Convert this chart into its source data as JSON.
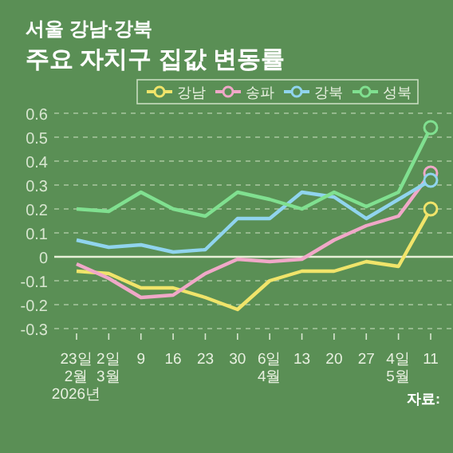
{
  "chart_data": {
    "type": "line",
    "subtitle": "서울 강남·강북",
    "title": "주요 자치구 집값 변동률",
    "categories": [
      "23일\n2월\n2026년",
      "2일\n3월",
      "9",
      "16",
      "23",
      "30",
      "6일\n4월",
      "13",
      "20",
      "27",
      "4일\n5월",
      "11"
    ],
    "series": [
      {
        "name": "강남",
        "color": "#f0e46a",
        "values": [
          -0.06,
          -0.07,
          -0.13,
          -0.13,
          -0.17,
          -0.22,
          -0.1,
          -0.06,
          -0.06,
          -0.02,
          -0.04,
          0.2
        ]
      },
      {
        "name": "송파",
        "color": "#f0a8c8",
        "values": [
          -0.03,
          -0.09,
          -0.17,
          -0.16,
          -0.07,
          -0.01,
          -0.02,
          -0.01,
          0.07,
          0.13,
          0.17,
          0.35
        ]
      },
      {
        "name": "강북",
        "color": "#90d4ee",
        "values": [
          0.07,
          0.04,
          0.05,
          0.02,
          0.03,
          0.16,
          0.16,
          0.27,
          0.25,
          0.16,
          0.24,
          0.32
        ]
      },
      {
        "name": "성북",
        "color": "#80e090",
        "values": [
          0.2,
          0.19,
          0.27,
          0.2,
          0.17,
          0.27,
          0.24,
          0.2,
          0.27,
          0.21,
          0.27,
          0.54
        ]
      }
    ],
    "ylim": [
      -0.3,
      0.6
    ],
    "yticks": [
      -0.3,
      -0.2,
      -0.1,
      0,
      0.1,
      0.2,
      0.3,
      0.4,
      0.5,
      0.6
    ],
    "ref_lines": [
      {
        "axis": "y",
        "value": 0,
        "color": "#e8f0d8"
      }
    ],
    "grid": "y",
    "legend": "top",
    "line_style": "solid",
    "annotations": [
      "자료:"
    ]
  }
}
